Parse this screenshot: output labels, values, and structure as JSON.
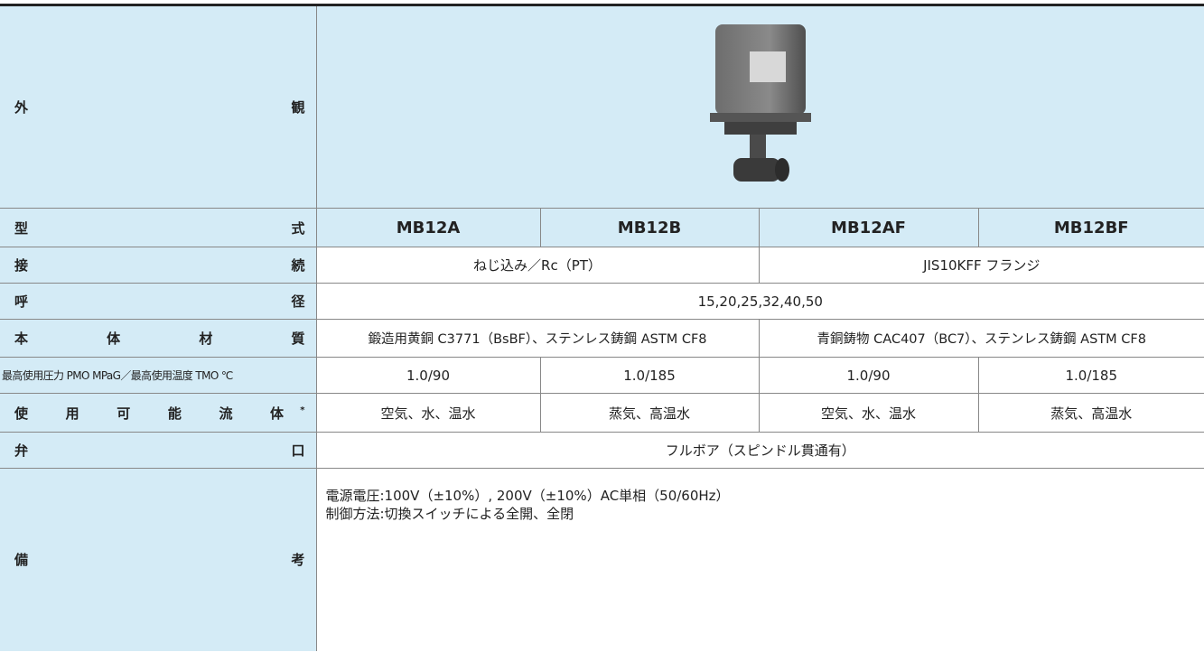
{
  "table": {
    "rows": [
      {
        "label": "外 観"
      },
      {
        "label": "型 式",
        "cells": [
          "MB12A",
          "MB12B",
          "MB12AF",
          "MB12BF"
        ]
      },
      {
        "label": "接 続",
        "cells": [
          "ねじ込み／Rc（PT）",
          "JIS10KFF フランジ"
        ]
      },
      {
        "label": "呼 径",
        "cells": [
          "15,20,25,32,40,50"
        ]
      },
      {
        "label": "本 体 材 質",
        "cells": [
          "鍛造用黄銅 C3771（BsBF）、ステンレス鋳鋼 ASTM CF8",
          "青銅鋳物 CAC407（BC7）、ステンレス鋳鋼 ASTM CF8"
        ]
      },
      {
        "label": "最高使用圧力 PMO MPaG／最高使用温度 TMO ℃",
        "cells": [
          "1.0/90",
          "1.0/185",
          "1.0/90",
          "1.0/185"
        ]
      },
      {
        "label": "使 用 可 能 流 体",
        "note_mark": "*",
        "cells": [
          "空気、水、温水",
          "蒸気、高温水",
          "空気、水、温水",
          "蒸気、高温水"
        ]
      },
      {
        "label": "弁 口",
        "cells": [
          "フルボア（スピンドル貫通有）"
        ]
      },
      {
        "label": "備 考",
        "lines": [
          "電源電圧:100V（±10%）, 200V（±10%）AC単相（50/60Hz）",
          "制御方法:切換スイッチによる全開、全閉"
        ]
      }
    ]
  }
}
